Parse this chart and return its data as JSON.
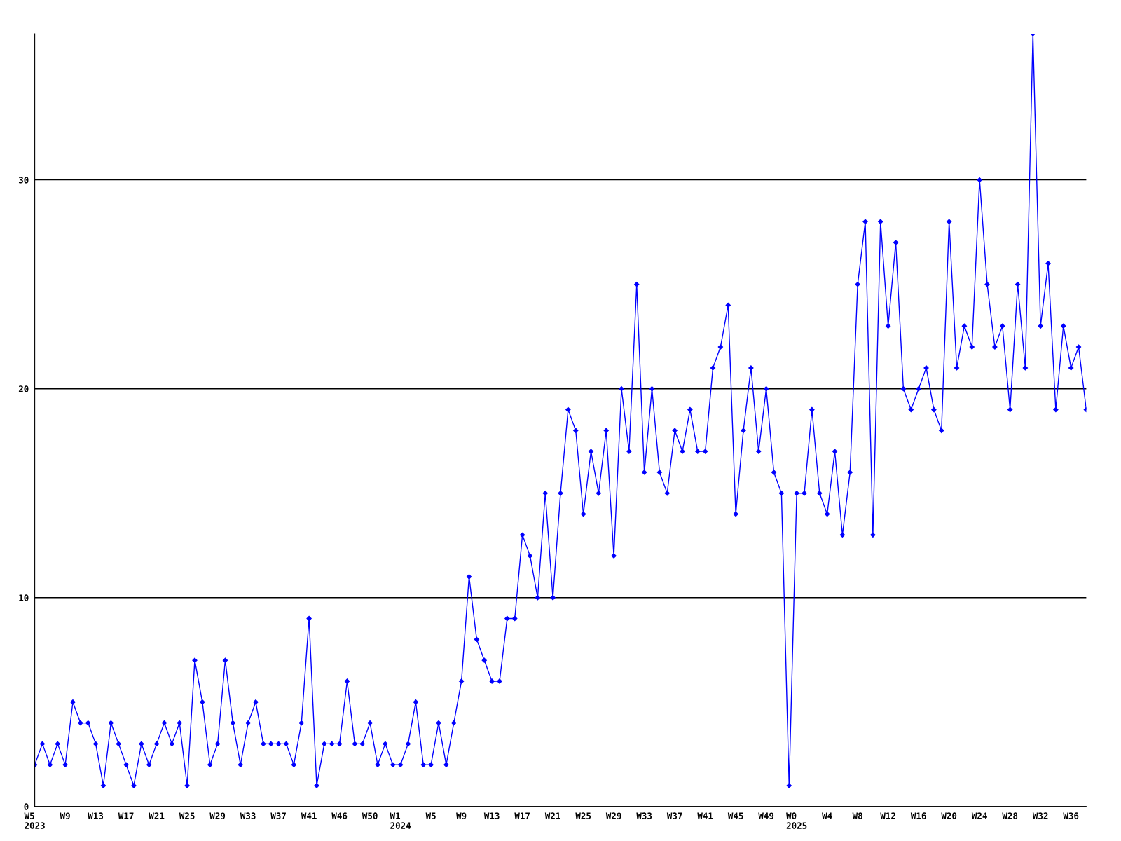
{
  "chart_data": {
    "type": "line",
    "categories": [
      "W5\n2023",
      null,
      null,
      null,
      "W9",
      null,
      null,
      null,
      "W13",
      null,
      null,
      null,
      "W17",
      null,
      null,
      null,
      "W21",
      null,
      null,
      null,
      "W25",
      null,
      null,
      null,
      "W29",
      null,
      null,
      null,
      "W33",
      null,
      null,
      null,
      "W37",
      null,
      null,
      null,
      "W41",
      null,
      null,
      null,
      "W46",
      null,
      null,
      null,
      "W50",
      null,
      null,
      null,
      "W1\n2024",
      null,
      null,
      null,
      "W5",
      null,
      null,
      null,
      "W9",
      null,
      null,
      null,
      "W13",
      null,
      null,
      null,
      "W17",
      null,
      null,
      null,
      "W21",
      null,
      null,
      null,
      "W25",
      null,
      null,
      null,
      "W29",
      null,
      null,
      null,
      "W33",
      null,
      null,
      null,
      "W37",
      null,
      null,
      null,
      "W41",
      null,
      null,
      null,
      "W45",
      null,
      null,
      null,
      "W49",
      null,
      null,
      null,
      "W0\n2025",
      null,
      null,
      null,
      "W4",
      null,
      null,
      null,
      "W8",
      null,
      null,
      null,
      "W12",
      null,
      null,
      null,
      "W16",
      null,
      null,
      null,
      "W20",
      null,
      null,
      null,
      "W24",
      null,
      null,
      null,
      "W28",
      null,
      null,
      null,
      "W32",
      null,
      null,
      null,
      "W36",
      null,
      null
    ],
    "series": [
      {
        "color": "#0000ff",
        "values": [
          2,
          3,
          2,
          3,
          2,
          5,
          4,
          4,
          3,
          1,
          4,
          3,
          2,
          1,
          3,
          2,
          3,
          4,
          3,
          4,
          1,
          7,
          5,
          2,
          3,
          7,
          4,
          2,
          4,
          5,
          3,
          3,
          3,
          3,
          2,
          4,
          9,
          1,
          3,
          3,
          3,
          6,
          3,
          3,
          4,
          2,
          3,
          2,
          2,
          3,
          5,
          2,
          2,
          4,
          2,
          4,
          6,
          11,
          8,
          7,
          6,
          6,
          9,
          9,
          13,
          12,
          10,
          15,
          10,
          15,
          19,
          18,
          14,
          17,
          15,
          18,
          12,
          20,
          17,
          25,
          16,
          20,
          16,
          15,
          18,
          17,
          19,
          17,
          17,
          21,
          22,
          24,
          14,
          18,
          21,
          17,
          20,
          16,
          15,
          1,
          15,
          15,
          19,
          15,
          14,
          17,
          13,
          16,
          25,
          28,
          13,
          28,
          23,
          27,
          20,
          19,
          20,
          21,
          19,
          18,
          28,
          21,
          23,
          22,
          30,
          25,
          22,
          23,
          19,
          25,
          21,
          37,
          23,
          26,
          19,
          23,
          21,
          22,
          19
        ]
      }
    ],
    "ylim": [
      0,
      37
    ],
    "yticks": [
      0,
      10,
      20,
      30
    ],
    "grid": "y",
    "marker": "diamond",
    "line_style": "solid"
  }
}
